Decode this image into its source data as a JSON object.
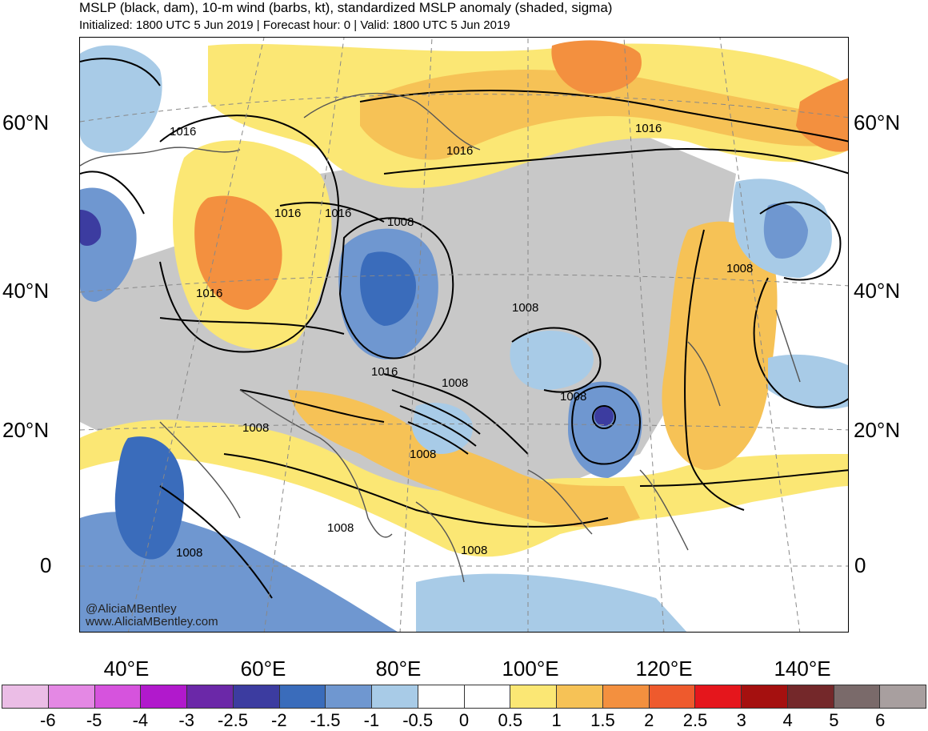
{
  "title": "MSLP (black, dam), 10-m wind (barbs, kt), standardized MSLP anomaly (shaded, sigma)",
  "subtitle": "Initialized: 1800 UTC 5 Jun 2019 | Forecast hour: 0 | Valid: 1800 UTC 5 Jun 2019",
  "credits": {
    "handle": "@AliciaMBentley",
    "site": "www.AliciaMBentley.com"
  },
  "lat_labels": [
    "60°N",
    "40°N",
    "20°N",
    "0"
  ],
  "lon_labels": [
    "40°E",
    "60°E",
    "80°E",
    "100°E",
    "120°E",
    "140°E"
  ],
  "contour_labels": [
    "1016",
    "1016",
    "1016",
    "1016",
    "1016",
    "1008",
    "1016",
    "1008",
    "1016",
    "1008",
    "1008",
    "1008",
    "1008",
    "1008",
    "1008",
    "1008",
    "1008"
  ],
  "colorbar": {
    "ticks": [
      "-6",
      "-5",
      "-4",
      "-3",
      "-2.5",
      "-2",
      "-1.5",
      "-1",
      "-0.5",
      "0",
      "0.5",
      "1",
      "1.5",
      "2",
      "2.5",
      "3",
      "4",
      "5",
      "6"
    ],
    "colors": [
      "#ebbde6",
      "#e488e4",
      "#d653dd",
      "#b119cc",
      "#6b28a8",
      "#3c3ca0",
      "#3a6cbb",
      "#6f97d0",
      "#a8cbe7",
      "#ffffff",
      "#ffffff",
      "#fbe774",
      "#f6c256",
      "#f3903f",
      "#ee5a2d",
      "#e5161c",
      "#a5100f",
      "#74282a",
      "#7a6a6a",
      "#a89f9f"
    ]
  }
}
